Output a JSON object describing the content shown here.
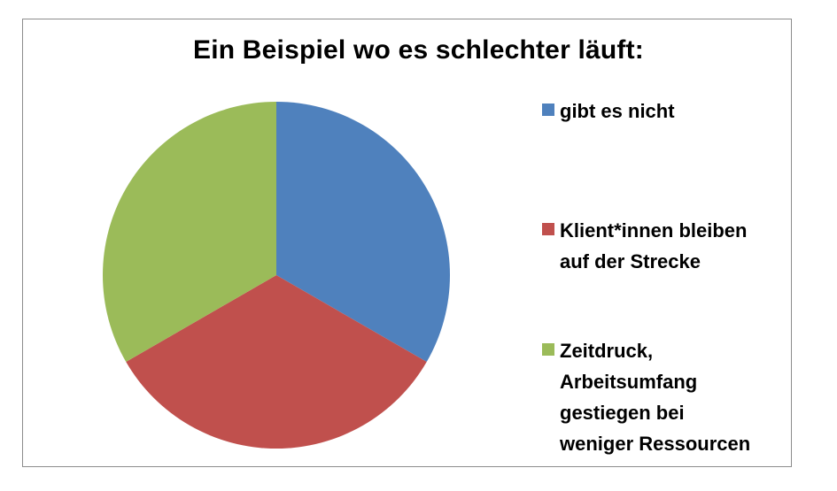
{
  "chart_data": {
    "type": "pie",
    "title": "Ein Beispiel wo es schlechter läuft:",
    "categories": [
      "gibt es nicht",
      "Klient*innen bleiben auf der Strecke",
      "Zeitdruck, Arbeitsumfang gestiegen bei weniger Ressourcen"
    ],
    "values": [
      33.3,
      33.3,
      33.3
    ],
    "colors": [
      "#4f81bd",
      "#c0504d",
      "#9bbb59"
    ],
    "legend_position": "right",
    "start_angle": 0,
    "direction": "clockwise"
  },
  "title": "Ein Beispiel wo es schlechter läuft:",
  "legend": {
    "items": [
      {
        "label": "gibt es nicht",
        "color": "#4f81bd"
      },
      {
        "label": "Klient*innen bleiben\nauf der Strecke",
        "color": "#c0504d"
      },
      {
        "label": "Zeitdruck,\nArbeitsumfang\ngestiegen bei\nweniger Ressourcen",
        "color": "#9bbb59"
      }
    ]
  }
}
